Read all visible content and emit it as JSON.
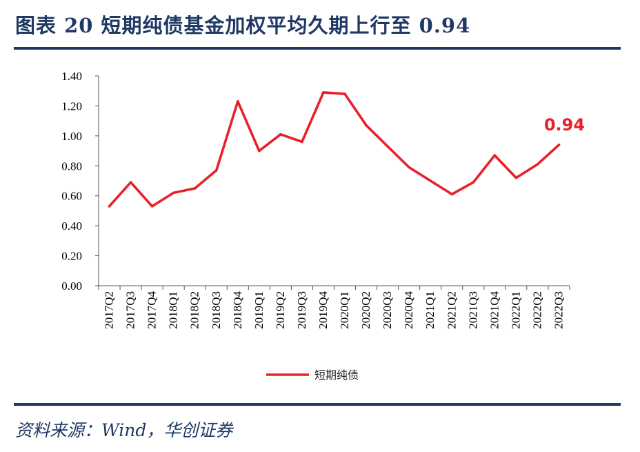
{
  "header": {
    "title": "图表 20  短期纯债基金加权平均久期上行至 0.94"
  },
  "footer": {
    "source": "资料来源：Wind，华创证券"
  },
  "colors": {
    "accent": "#1f3864",
    "series": "#e8202a"
  },
  "chart_data": {
    "type": "line",
    "title": "",
    "xlabel": "",
    "ylabel": "",
    "ylim": [
      0,
      1.4
    ],
    "yticks": [
      "0.00",
      "0.20",
      "0.40",
      "0.60",
      "0.80",
      "1.00",
      "1.20",
      "1.40"
    ],
    "grid": false,
    "legend_position": "bottom",
    "categories": [
      "2017Q2",
      "2017Q3",
      "2017Q4",
      "2018Q1",
      "2018Q2",
      "2018Q3",
      "2018Q4",
      "2019Q1",
      "2019Q2",
      "2019Q3",
      "2019Q4",
      "2020Q1",
      "2020Q2",
      "2020Q3",
      "2020Q4",
      "2021Q1",
      "2021Q2",
      "2021Q3",
      "2021Q4",
      "2022Q1",
      "2022Q2",
      "2022Q3"
    ],
    "series": [
      {
        "name": "短期纯债",
        "color": "#e8202a",
        "values": [
          0.53,
          0.69,
          0.53,
          0.62,
          0.65,
          0.77,
          1.23,
          0.9,
          1.01,
          0.96,
          1.29,
          1.28,
          1.07,
          0.93,
          0.79,
          0.7,
          0.61,
          0.69,
          0.87,
          0.72,
          0.81,
          0.94
        ]
      }
    ],
    "annotations": [
      {
        "text": "0.94",
        "category": "2022Q3",
        "value": 0.94
      }
    ]
  }
}
